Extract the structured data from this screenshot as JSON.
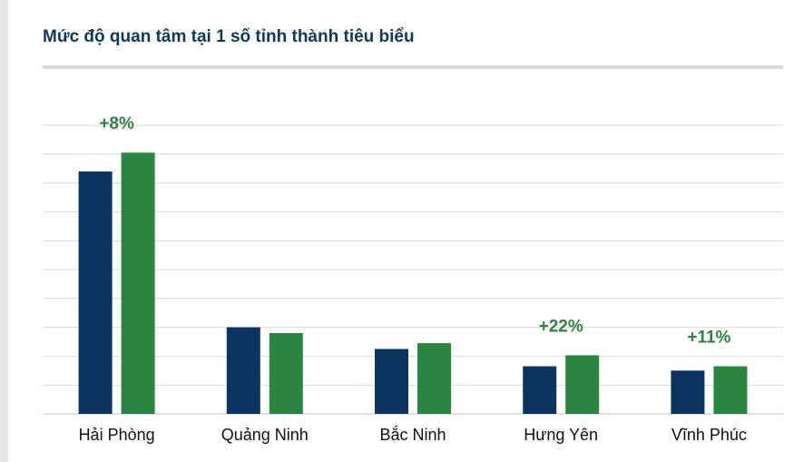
{
  "chart_data": {
    "type": "bar",
    "title": "Mức độ quan tâm tại 1 số tỉnh thành tiêu biểu",
    "categories": [
      "Hải Phòng",
      "Quảng Ninh",
      "Bắc Ninh",
      "Hưng Yên",
      "Vĩnh Phúc"
    ],
    "series": [
      {
        "values": [
          84,
          30,
          22.5,
          16.5,
          15
        ],
        "color": "#0b3560"
      },
      {
        "values": [
          90.5,
          28,
          24.5,
          20.3,
          16.5
        ],
        "color": "#2a8540"
      }
    ],
    "ylim": [
      0,
      100
    ],
    "gridlines": true,
    "annotations": [
      {
        "category": "Hải Phòng",
        "text": "+8%"
      },
      {
        "category": "Hưng Yên",
        "text": "+22%"
      },
      {
        "category": "Vĩnh Phúc",
        "text": "+11%"
      }
    ],
    "annotation_color": "#2a8540"
  }
}
